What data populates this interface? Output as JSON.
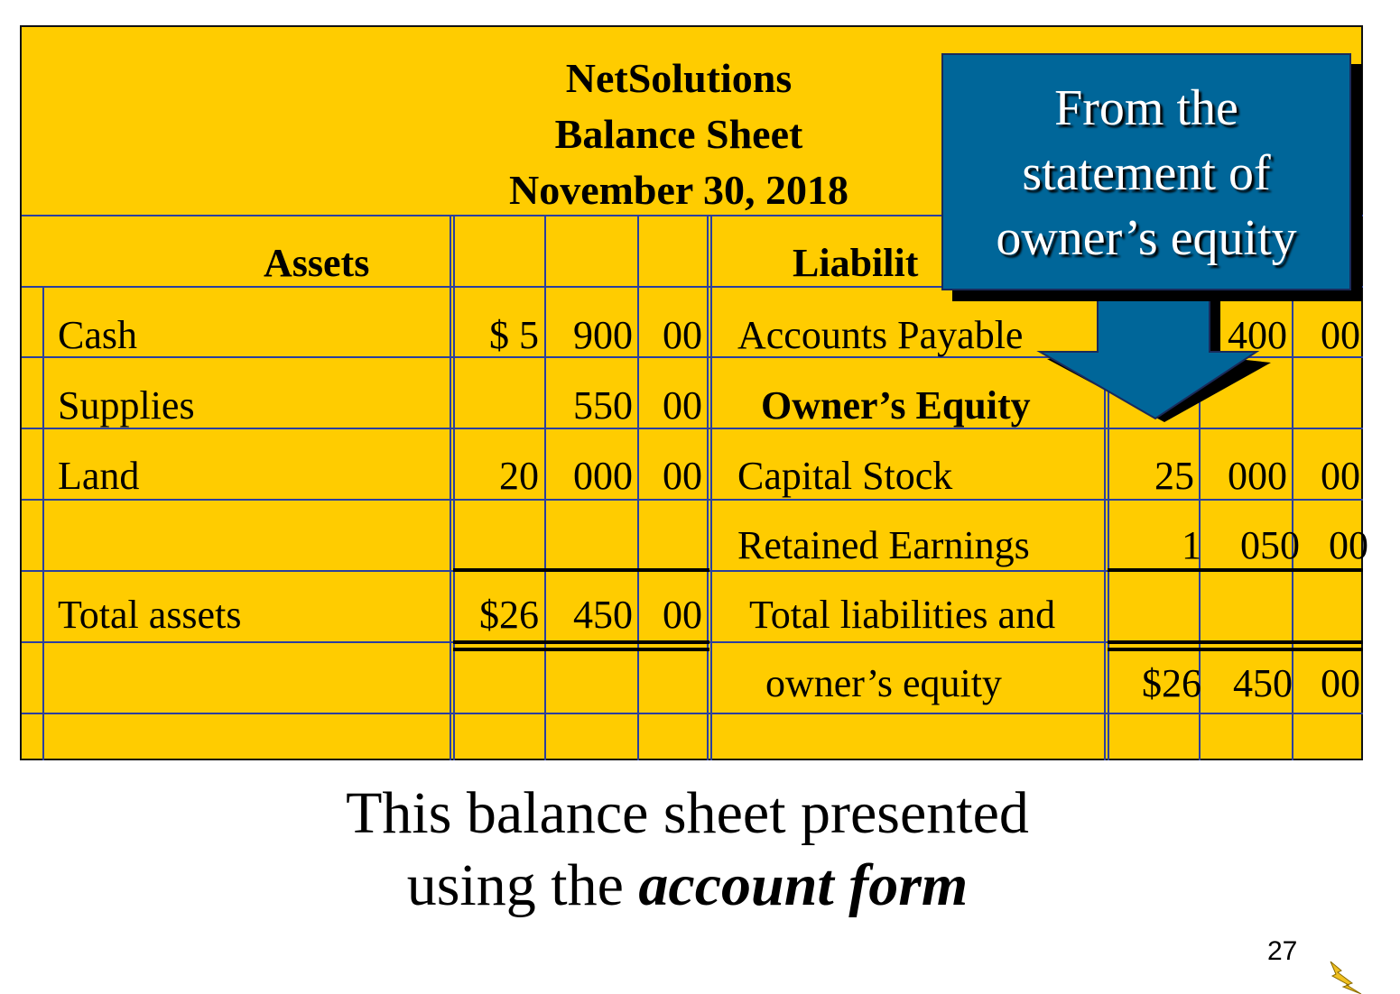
{
  "header": {
    "company": "NetSolutions",
    "statement": "Balance Sheet",
    "date": "November 30, 2018"
  },
  "columns": {
    "assets_heading": "Assets",
    "liabilities_heading": "Liabilit"
  },
  "assets": {
    "cash_label": "Cash",
    "cash_a": "$ 5",
    "cash_b": "900",
    "cash_c": "00",
    "supplies_label": "Supplies",
    "supplies_b": "550",
    "supplies_c": "00",
    "land_label": "Land",
    "land_a": "20",
    "land_b": "000",
    "land_c": "00",
    "total_label": "Total assets",
    "total_a": "$26",
    "total_b": "450",
    "total_c": "00"
  },
  "liabilities": {
    "ap_label": "Accounts Payable",
    "ap_b": "400",
    "ap_c": "00",
    "equity_heading": "Owner’s Equity",
    "capital_label": "Capital Stock",
    "capital_a": "25",
    "capital_b": "000",
    "capital_c": "00",
    "retained_label": "Retained Earnings",
    "retained_a": "1",
    "retained_b": "050",
    "retained_c": "00",
    "total_label_1": "Total liabilities and",
    "total_label_2": "owner’s equity",
    "total_a": "$26",
    "total_b": "450",
    "total_c": "00"
  },
  "callout": {
    "line1": "From the",
    "line2": "statement of",
    "line3": "owner’s equity",
    "color": "#006699"
  },
  "caption": {
    "line1": "This balance sheet presented",
    "line2_prefix": "using the ",
    "line2_emphasis": "account form"
  },
  "footer": {
    "page_number": "27",
    "icon": "lightning-bolt-icon"
  },
  "colors": {
    "sheet_background": "#ffcc00",
    "grid_lines": "#2b3f9e"
  }
}
